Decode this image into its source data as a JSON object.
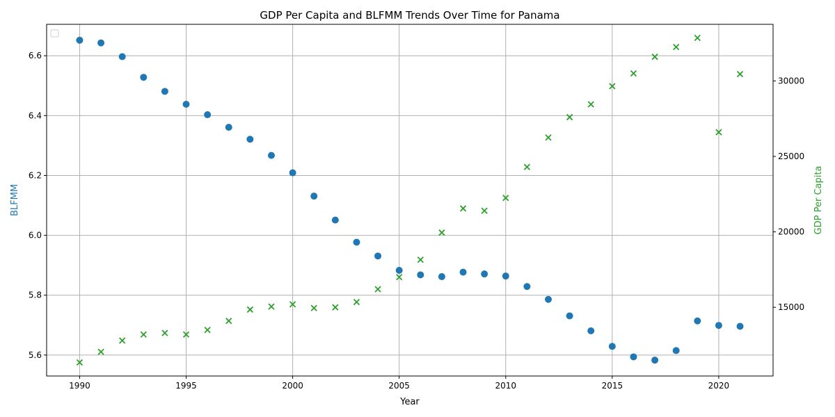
{
  "chart_data": {
    "type": "scatter",
    "title": "GDP Per Capita and BLFMM Trends Over Time for Panama",
    "xlabel": "Year",
    "ylabel_left": "BLFMM",
    "ylabel_right": "GDP Per Capita",
    "xlim": [
      1988.45,
      2022.55
    ],
    "ylim_left": [
      5.53,
      6.705
    ],
    "ylim_right": [
      10450,
      33750
    ],
    "x_ticks": [
      1990,
      1995,
      2000,
      2005,
      2010,
      2015,
      2020
    ],
    "y_left_ticks": [
      5.6,
      5.8,
      6.0,
      6.2,
      6.4,
      6.6
    ],
    "y_right_ticks": [
      15000,
      20000,
      25000,
      30000
    ],
    "grid": true,
    "legend": "upper-left, empty",
    "series": [
      {
        "name": "BLFMM",
        "axis": "left",
        "color": "#1f77b4",
        "marker": "circle",
        "x": [
          1990,
          1991,
          1992,
          1993,
          1994,
          1995,
          1996,
          1997,
          1998,
          1999,
          2000,
          2001,
          2002,
          2003,
          2004,
          2005,
          2006,
          2007,
          2008,
          2009,
          2010,
          2011,
          2012,
          2013,
          2014,
          2015,
          2016,
          2017,
          2018,
          2019,
          2020,
          2021
        ],
        "y": [
          6.652,
          6.643,
          6.597,
          6.528,
          6.481,
          6.438,
          6.403,
          6.361,
          6.321,
          6.267,
          6.209,
          6.131,
          6.051,
          5.977,
          5.931,
          5.883,
          5.868,
          5.862,
          5.877,
          5.871,
          5.864,
          5.829,
          5.786,
          5.731,
          5.681,
          5.629,
          5.594,
          5.583,
          5.615,
          5.714,
          5.699,
          5.696
        ]
      },
      {
        "name": "GDP Per Capita",
        "axis": "right",
        "color": "#2ca02c",
        "marker": "x",
        "x": [
          1990,
          1991,
          1992,
          1993,
          1994,
          1995,
          1996,
          1997,
          1998,
          1999,
          2000,
          2001,
          2002,
          2003,
          2004,
          2005,
          2006,
          2007,
          2008,
          2009,
          2010,
          2011,
          2012,
          2013,
          2014,
          2015,
          2016,
          2017,
          2018,
          2019,
          2020,
          2021
        ],
        "y": [
          11350,
          12050,
          12800,
          13200,
          13300,
          13200,
          13500,
          14100,
          14850,
          15050,
          15200,
          14950,
          15000,
          15350,
          16200,
          17000,
          18150,
          19950,
          21550,
          21400,
          22250,
          24300,
          26250,
          27600,
          28450,
          29650,
          30500,
          31600,
          32250,
          32850,
          26600,
          30450
        ]
      }
    ]
  }
}
